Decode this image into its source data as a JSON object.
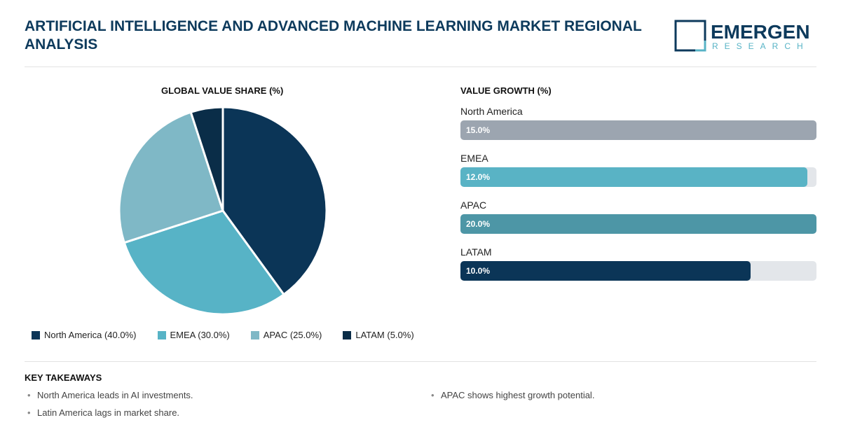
{
  "header": {
    "title": "ARTIFICIAL INTELLIGENCE AND ADVANCED MACHINE LEARNING MARKET REGIONAL ANALYSIS",
    "logo_text": "EMERGEN",
    "logo_sub": "RESEARCH"
  },
  "chart_data": [
    {
      "type": "pie",
      "title": "GLOBAL VALUE SHARE (%)",
      "slices": [
        {
          "label": "North America",
          "value": 40.0,
          "color": "#0b3557",
          "legend": "North America (40.0%)"
        },
        {
          "label": "EMEA",
          "value": 30.0,
          "color": "#57b3c6",
          "legend": "EMEA (30.0%)"
        },
        {
          "label": "APAC",
          "value": 25.0,
          "color": "#7fb8c6",
          "legend": "APAC (25.0%)"
        },
        {
          "label": "LATAM",
          "value": 5.0,
          "color": "#0a2d48",
          "legend": "LATAM (5.0%)"
        }
      ],
      "legend_position": "bottom"
    },
    {
      "type": "bar",
      "orientation": "horizontal",
      "title": "VALUE GROWTH (%)",
      "bars": [
        {
          "label": "North America",
          "value_label": "15.0%",
          "value": 15.0,
          "fill_percent": 100,
          "color": "#9ca5b0"
        },
        {
          "label": "EMEA",
          "value_label": "12.0%",
          "value": 12.0,
          "fill_percent": 97.5,
          "color": "#59b3c5"
        },
        {
          "label": "APAC",
          "value_label": "20.0%",
          "value": 20.0,
          "fill_percent": 100,
          "color": "#4d96a6"
        },
        {
          "label": "LATAM",
          "value_label": "10.0%",
          "value": 10.0,
          "fill_percent": 81.5,
          "color": "#0b3557"
        }
      ]
    }
  ],
  "takeaways": {
    "title": "KEY TAKEAWAYS",
    "items": [
      "North America leads in AI investments.",
      "Latin America lags in market share.",
      "APAC shows highest growth potential."
    ]
  }
}
